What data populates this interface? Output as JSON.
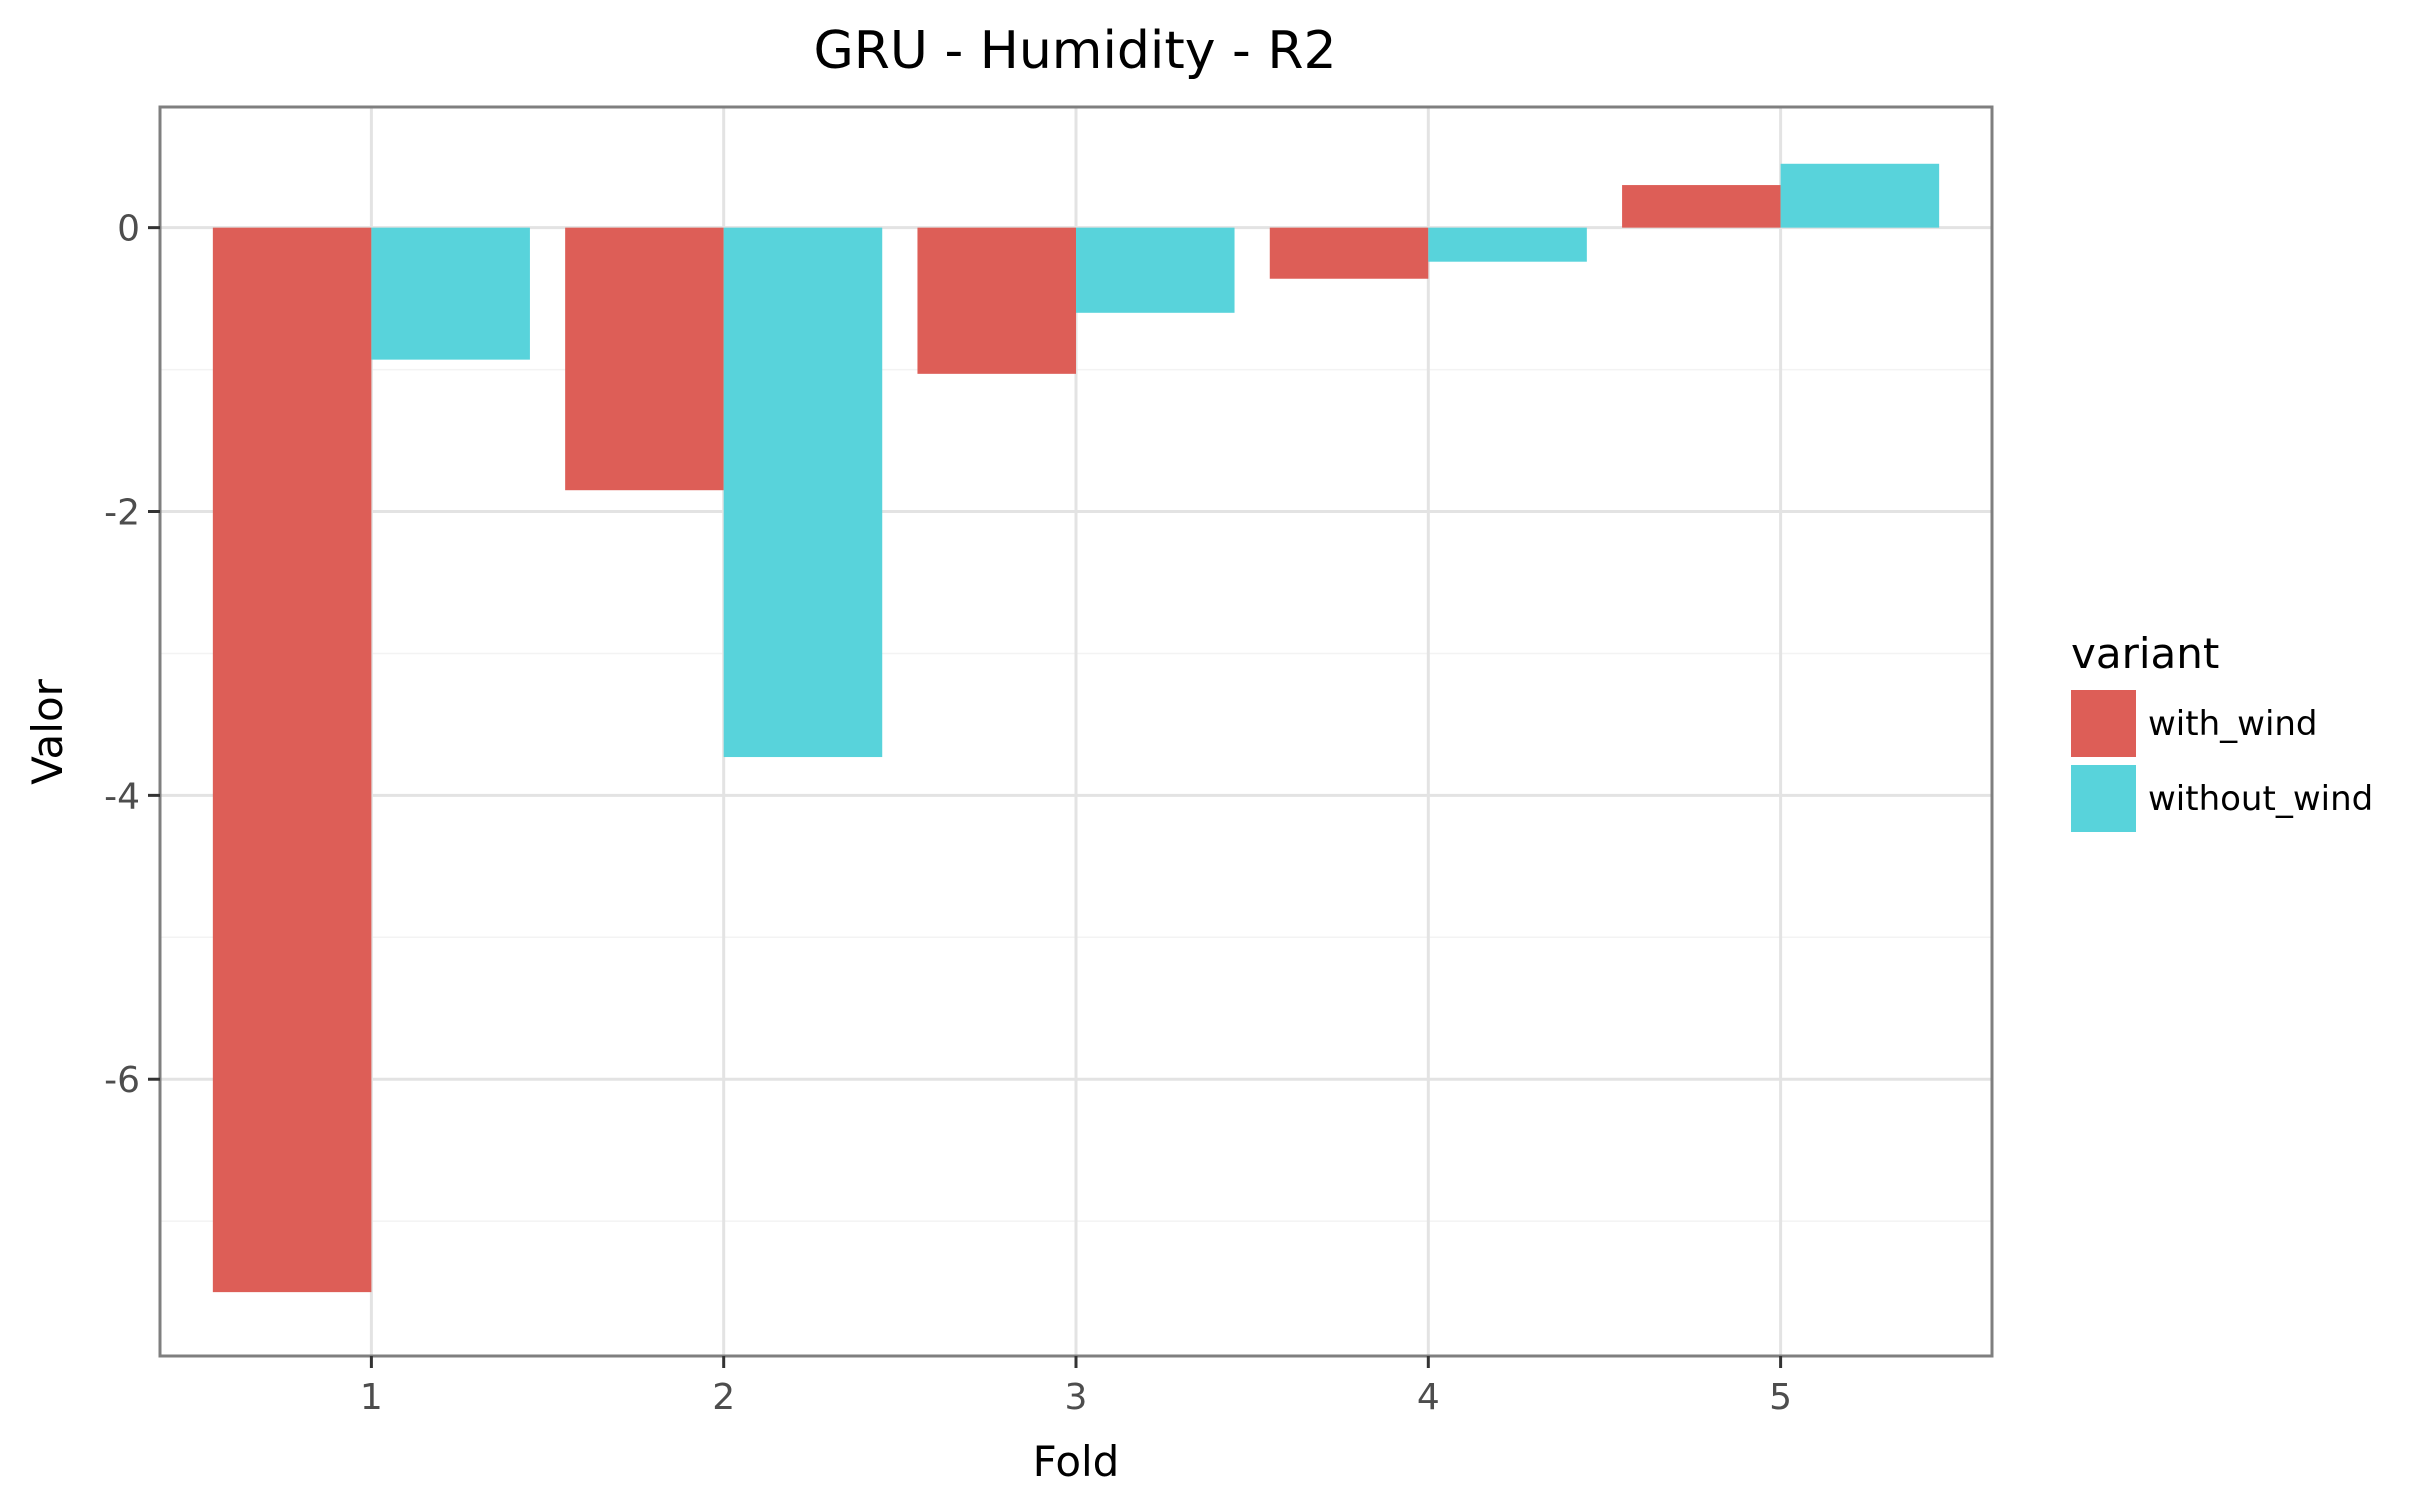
{
  "chart_data": {
    "type": "bar",
    "title": "GRU - Humidity - R2",
    "xlabel": "Fold",
    "ylabel": "Valor",
    "categories": [
      "1",
      "2",
      "3",
      "4",
      "5"
    ],
    "series": [
      {
        "name": "with_wind",
        "color": "#DD5E57",
        "values": [
          -7.5,
          -1.85,
          -1.03,
          -0.36,
          0.3
        ]
      },
      {
        "name": "without_wind",
        "color": "#58D3DB",
        "values": [
          -0.93,
          -3.73,
          -0.6,
          -0.24,
          0.45
        ]
      }
    ],
    "ylim": [
      -7.95,
      0.85
    ],
    "yticks": [
      0,
      -2,
      -4,
      -6
    ],
    "ytick_labels": [
      "0",
      "-2",
      "-4",
      "-6"
    ],
    "grid": true,
    "legend": {
      "title": "variant",
      "position": "right"
    }
  }
}
